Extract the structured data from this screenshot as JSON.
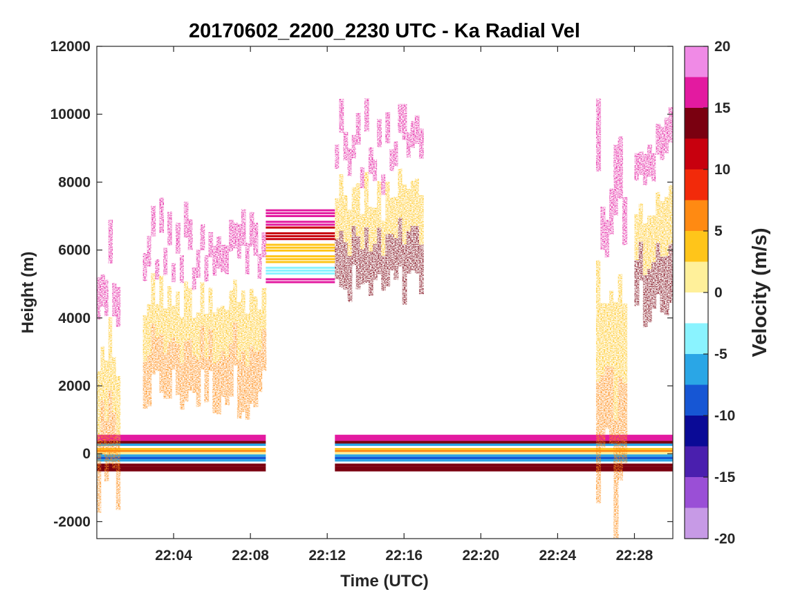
{
  "chart_data": {
    "type": "heatmap",
    "title": "20170602_2200_2230 UTC - Ka Radial Vel",
    "xlabel": "Time (UTC)",
    "ylabel": "Height (m)",
    "xlim_minutes_after_2200": [
      0,
      30
    ],
    "ylim": [
      -2500,
      12000
    ],
    "x_ticks": [
      {
        "label": "22:04",
        "minute": 4
      },
      {
        "label": "22:08",
        "minute": 8
      },
      {
        "label": "22:12",
        "minute": 12
      },
      {
        "label": "22:16",
        "minute": 16
      },
      {
        "label": "22:20",
        "minute": 20
      },
      {
        "label": "22:24",
        "minute": 24
      },
      {
        "label": "22:28",
        "minute": 28
      }
    ],
    "y_ticks": [
      12000,
      10000,
      8000,
      6000,
      4000,
      2000,
      0,
      -2000
    ],
    "y_tick_labels": [
      "12000",
      "10000",
      "8000",
      "6000",
      "4000",
      "2000",
      "0",
      "-2000"
    ],
    "colorbar": {
      "label": "Velocity (m/s)",
      "range": [
        -20,
        20
      ],
      "ticks": [
        20,
        15,
        10,
        5,
        0,
        -5,
        -10,
        -15,
        -20
      ],
      "tick_labels": [
        "20",
        "15",
        "10",
        "5",
        "0",
        "-5",
        "-10",
        "-15",
        "-20"
      ],
      "colors": [
        "#c79ae6",
        "#9a4fd6",
        "#4a1fae",
        "#0a0a96",
        "#1656d4",
        "#2aa6e6",
        "#8af3ff",
        "#ffffff",
        "#fff09a",
        "#ffc51a",
        "#ff8a12",
        "#f22a0a",
        "#c8000e",
        "#7a0010",
        "#e31aa0",
        "#f08ae6"
      ]
    },
    "features": [
      {
        "kind": "surface_band",
        "start_minute": 0.0,
        "end_minute": 8.8,
        "top_m": 400,
        "bottom_m": -400
      },
      {
        "kind": "surface_band",
        "start_minute": 12.4,
        "end_minute": 30.0,
        "top_m": 400,
        "bottom_m": -400
      },
      {
        "kind": "precip_column",
        "start_minute": 0.0,
        "end_minute": 1.2,
        "top_m": 7500,
        "bottom_m": -2500
      },
      {
        "kind": "precip_column",
        "start_minute": 2.4,
        "end_minute": 8.8,
        "top_m": 7800,
        "bottom_m": 1000
      },
      {
        "kind": "gap_stripes",
        "start_minute": 8.8,
        "end_minute": 12.4,
        "top_m": 7200,
        "bottom_m": 5000
      },
      {
        "kind": "cloud_layer",
        "start_minute": 12.4,
        "end_minute": 17.0,
        "top_m": 10500,
        "bottom_m": 4000
      },
      {
        "kind": "precip_column",
        "start_minute": 26.0,
        "end_minute": 27.6,
        "top_m": 10500,
        "bottom_m": -2500
      },
      {
        "kind": "cloud_layer",
        "start_minute": 28.0,
        "end_minute": 30.0,
        "top_m": 10500,
        "bottom_m": 3500
      }
    ]
  }
}
